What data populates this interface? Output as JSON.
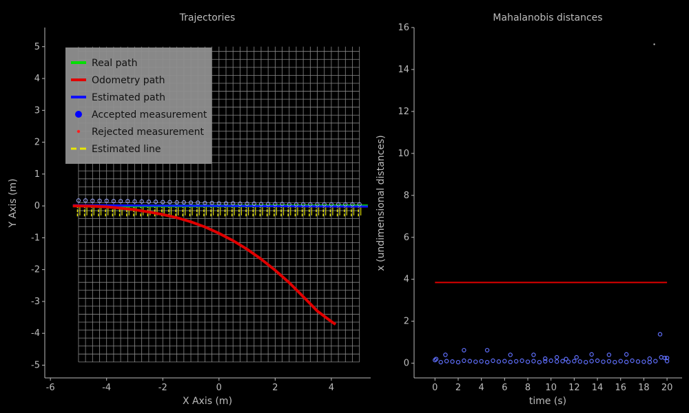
{
  "chart_data": [
    {
      "type": "line",
      "title": "Trajectories",
      "xlabel": "X Axis (m)",
      "ylabel": "Y Axis (m)",
      "xlim": [
        -6.2,
        5.4
      ],
      "ylim": [
        -5.4,
        5.6
      ],
      "xticks": [
        -6,
        -4,
        -2,
        0,
        2,
        4
      ],
      "yticks": [
        -5,
        -4,
        -3,
        -2,
        -1,
        0,
        1,
        2,
        3,
        4,
        5
      ],
      "grid": {
        "x_from": -5,
        "x_to": 5,
        "y_from": -4.9,
        "y_to": 5,
        "step": 0.25
      },
      "legend": {
        "placement": "top-left",
        "entries": [
          {
            "label": "Real path",
            "color": "#00e000",
            "kind": "line"
          },
          {
            "label": "Odometry path",
            "color": "#e00000",
            "kind": "line"
          },
          {
            "label": "Estimated path",
            "color": "#1010ff",
            "kind": "line"
          },
          {
            "label": "Accepted measurement",
            "color": "#0000ff",
            "kind": "big-dot"
          },
          {
            "label": "Rejected measurement",
            "color": "#ff2020",
            "kind": "small-dot"
          },
          {
            "label": "Estimated line",
            "color": "#e8e800",
            "kind": "dash"
          }
        ]
      },
      "series": [
        {
          "name": "Real path",
          "color": "#00e000",
          "x": [
            -5.2,
            5.3
          ],
          "y": [
            0.0,
            0.0
          ]
        },
        {
          "name": "Odometry path",
          "color": "#e00000",
          "x": [
            -5.2,
            -4.5,
            -4.0,
            -3.5,
            -3.0,
            -2.5,
            -2.0,
            -1.5,
            -1.0,
            -0.5,
            0.0,
            0.5,
            1.0,
            1.5,
            2.0,
            2.5,
            3.0,
            3.5,
            4.0,
            4.15
          ],
          "y": [
            0.0,
            -0.01,
            -0.03,
            -0.07,
            -0.12,
            -0.19,
            -0.27,
            -0.37,
            -0.5,
            -0.66,
            -0.86,
            -1.09,
            -1.36,
            -1.67,
            -2.02,
            -2.41,
            -2.85,
            -3.3,
            -3.63,
            -3.72
          ]
        },
        {
          "name": "Estimated path",
          "color": "#1010ff",
          "x": [
            -5.2,
            5.3
          ],
          "y": [
            0.02,
            -0.02
          ]
        }
      ],
      "measurements": {
        "name": "Accepted measurement",
        "x": [
          -5.0,
          -4.75,
          -4.5,
          -4.25,
          -4.0,
          -3.75,
          -3.5,
          -3.25,
          -3.0,
          -2.75,
          -2.5,
          -2.25,
          -2.0,
          -1.75,
          -1.5,
          -1.25,
          -1.0,
          -0.75,
          -0.5,
          -0.25,
          0.0,
          0.25,
          0.5,
          0.75,
          1.0,
          1.25,
          1.5,
          1.75,
          2.0,
          2.25,
          2.5,
          2.75,
          3.0,
          3.25,
          3.5,
          3.75,
          4.0,
          4.25,
          4.5,
          4.75,
          5.0
        ],
        "y": [
          0.17,
          0.17,
          0.16,
          0.16,
          0.16,
          0.15,
          0.15,
          0.15,
          0.14,
          0.14,
          0.13,
          0.13,
          0.12,
          0.12,
          0.11,
          0.11,
          0.1,
          0.1,
          0.09,
          0.09,
          0.08,
          0.08,
          0.08,
          0.07,
          0.07,
          0.07,
          0.06,
          0.06,
          0.06,
          0.06,
          0.05,
          0.05,
          0.05,
          0.05,
          0.05,
          0.05,
          0.05,
          0.05,
          0.05,
          0.05,
          0.05
        ]
      }
    },
    {
      "type": "scatter",
      "title": "Mahalanobis distances",
      "xlabel": "time (s)",
      "ylabel": "x (undimensional distances)",
      "xlim": [
        -1.8,
        21.3
      ],
      "ylim": [
        -0.7,
        16.0
      ],
      "xticks": [
        0,
        2,
        4,
        6,
        8,
        10,
        12,
        14,
        16,
        18,
        20
      ],
      "yticks": [
        0,
        2,
        4,
        6,
        8,
        10,
        12,
        14,
        16
      ],
      "threshold": {
        "color": "#e00000",
        "y": 3.85,
        "x_from": 0,
        "x_to": 20
      },
      "series": [
        {
          "name": "Accepted measurement",
          "color": "#6070ff",
          "x": [
            0,
            0.5,
            1,
            1.5,
            2,
            2.5,
            3,
            3.5,
            4,
            4.5,
            5,
            5.5,
            6,
            6.5,
            7,
            7.5,
            8,
            8.5,
            9,
            9.5,
            10,
            10.5,
            11,
            11.5,
            12,
            12.5,
            13,
            13.5,
            14,
            14.5,
            15,
            15.5,
            16,
            16.5,
            17,
            17.5,
            18,
            18.5,
            19,
            19.5,
            20,
            0.1,
            0.9,
            2.5,
            4.5,
            6.5,
            8.5,
            9.5,
            10.5,
            11.3,
            12.2,
            13.5,
            15,
            16.5,
            18.5,
            19.4,
            19.8,
            20
          ],
          "y": [
            0.15,
            0.05,
            0.1,
            0.08,
            0.05,
            0.12,
            0.1,
            0.07,
            0.09,
            0.05,
            0.12,
            0.08,
            0.1,
            0.06,
            0.09,
            0.12,
            0.07,
            0.1,
            0.05,
            0.09,
            0.12,
            0.08,
            0.1,
            0.07,
            0.1,
            0.08,
            0.05,
            0.1,
            0.12,
            0.07,
            0.09,
            0.05,
            0.1,
            0.06,
            0.12,
            0.08,
            0.07,
            0.05,
            0.1,
            0.28,
            0.25,
            0.2,
            0.4,
            0.62,
            0.62,
            0.4,
            0.4,
            0.22,
            0.28,
            0.2,
            0.28,
            0.42,
            0.4,
            0.42,
            0.22,
            1.38,
            0.25,
            0.1
          ]
        },
        {
          "name": "Rejected measurement",
          "color": "#bdbdbd",
          "x": [
            18.9
          ],
          "y": [
            15.2
          ]
        }
      ]
    }
  ]
}
